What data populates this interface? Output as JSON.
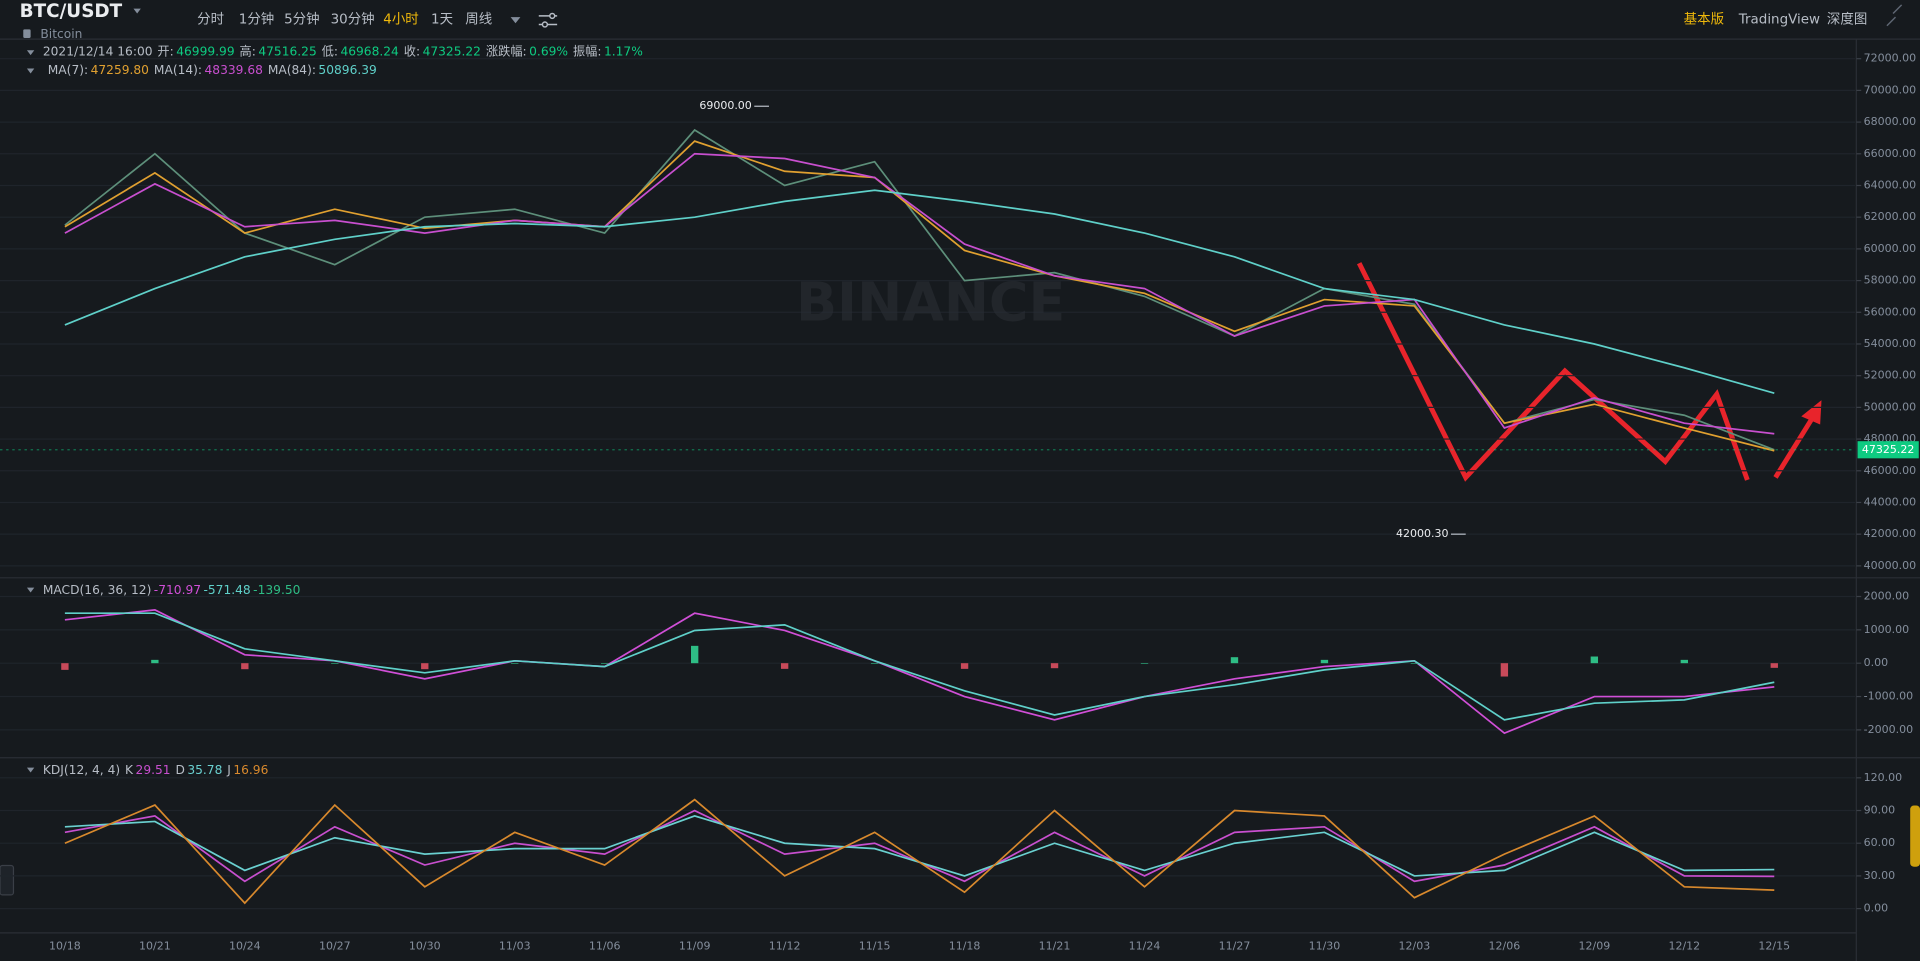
{
  "toolbar": {
    "symbol": "BTC/USDT",
    "name": "Bitcoin",
    "intervals": [
      "分时",
      "1分钟",
      "5分钟",
      "30分钟",
      "4小时",
      "1天",
      "周线"
    ],
    "active": 4,
    "views": [
      "基本版",
      "TradingView",
      "深度图"
    ]
  },
  "info": {
    "date": "2021/12/14 16:00",
    "fields": [
      {
        "label": "开:",
        "value": "46999.99"
      },
      {
        "label": "高:",
        "value": "47516.25"
      },
      {
        "label": "低:",
        "value": "46968.24"
      },
      {
        "label": "收:",
        "value": "47325.22"
      },
      {
        "label": "涨跌幅:",
        "value": "0.69%"
      },
      {
        "label": "振幅:",
        "value": "1.17%"
      }
    ]
  },
  "chart_data": [
    {
      "type": "line",
      "watermark": "BINANCE",
      "categories": [
        "10/18",
        "10/21",
        "10/24",
        "10/27",
        "10/30",
        "11/03",
        "11/06",
        "11/09",
        "11/12",
        "11/15",
        "11/18",
        "11/21",
        "11/24",
        "11/27",
        "11/30",
        "12/03",
        "12/06",
        "12/09",
        "12/12",
        "12/15"
      ],
      "series": [
        {
          "color": "#5d8f7a",
          "values": [
            61500,
            66000,
            61000,
            59000,
            62000,
            62500,
            61000,
            67500,
            64000,
            65500,
            58000,
            58500,
            57000,
            54500,
            57500,
            56500,
            49000,
            50500,
            49500,
            47325.22
          ]
        },
        {
          "name": "MA(7):",
          "last": "47259.80",
          "color": "#e0a030",
          "values": [
            61400,
            64800,
            61000,
            62500,
            61300,
            61800,
            61400,
            66800,
            64900,
            64500,
            59900,
            58300,
            57200,
            54800,
            56800,
            56400,
            49000,
            50200,
            48700,
            47259.8
          ]
        },
        {
          "name": "MA(14):",
          "last": "48339.68",
          "color": "#c84fcf",
          "values": [
            61000,
            64100,
            61400,
            61800,
            61000,
            61800,
            61400,
            66000,
            65700,
            64500,
            60300,
            58300,
            57500,
            54500,
            56400,
            56800,
            48700,
            50600,
            49000,
            48339.68
          ]
        },
        {
          "name": "MA(84):",
          "last": "50896.39",
          "color": "#5fd0c9",
          "values": [
            55200,
            57500,
            59500,
            60600,
            61400,
            61600,
            61400,
            62000,
            63000,
            63700,
            63000,
            62200,
            61000,
            59500,
            57500,
            56800,
            55200,
            54000,
            52500,
            50896.39
          ]
        }
      ],
      "annotations": [
        {
          "value": 69000,
          "label": "69000.00"
        },
        {
          "value": 42000.3,
          "label": "42000.30"
        }
      ],
      "ylim": [
        39400,
        73000
      ],
      "yticks": [
        {
          "value": 40000,
          "label": "40000.00"
        },
        {
          "value": 42000,
          "label": "42000.00"
        },
        {
          "value": 44000,
          "label": "44000.00"
        },
        {
          "value": 46000,
          "label": "46000.00"
        },
        {
          "value": 48000,
          "label": "48000.00"
        },
        {
          "value": 50000,
          "label": "50000.00"
        },
        {
          "value": 52000,
          "label": "52000.00"
        },
        {
          "value": 54000,
          "label": "54000.00"
        },
        {
          "value": 56000,
          "label": "56000.00"
        },
        {
          "value": 58000,
          "label": "58000.00"
        },
        {
          "value": 60000,
          "label": "60000.00"
        },
        {
          "value": 62000,
          "label": "62000.00"
        },
        {
          "value": 64000,
          "label": "64000.00"
        },
        {
          "value": 66000,
          "label": "66000.00"
        },
        {
          "value": 68000,
          "label": "68000.00"
        },
        {
          "value": 70000,
          "label": "70000.00"
        },
        {
          "value": 72000,
          "label": "72000.00"
        }
      ],
      "grid": true
    },
    {
      "type": "line",
      "title": "MACD(16, 36, 12)",
      "series": [
        {
          "last": "-710.97",
          "color": "#d04fd7",
          "values": [
            1300,
            1600,
            250,
            70,
            -470,
            70,
            -100,
            1500,
            980,
            70,
            -1000,
            -1700,
            -1000,
            -470,
            -100,
            70,
            -2100,
            -1000,
            -1000,
            -710.97
          ]
        },
        {
          "last": "-571.48",
          "color": "#5fd0c9",
          "values": [
            1500,
            1500,
            430,
            70,
            -290,
            70,
            -100,
            980,
            1150,
            70,
            -830,
            -1550,
            -1000,
            -650,
            -200,
            70,
            -1700,
            -1200,
            -1100,
            -571.48
          ]
        },
        {
          "last": "-139.50",
          "type": "bar",
          "color": "#2ebd85",
          "negative_color": "#c84a5a",
          "values": [
            -200,
            100,
            -180,
            0,
            -180,
            0,
            0,
            520,
            -170,
            0,
            -170,
            -150,
            0,
            180,
            100,
            0,
            -400,
            200,
            100,
            -139.5
          ]
        }
      ],
      "ylim": [
        -2800,
        2450
      ],
      "yticks": [
        {
          "value": 2000,
          "label": "2000.00"
        },
        {
          "value": 1000,
          "label": "1000.00"
        },
        {
          "value": 0,
          "label": "0.00"
        },
        {
          "value": -1000,
          "label": "-1000.00"
        },
        {
          "value": -2000,
          "label": "-2000.00"
        }
      ],
      "grid": true
    },
    {
      "type": "line",
      "title": "KDJ(12, 4, 4)",
      "series": [
        {
          "name": "K",
          "last": "29.51",
          "color": "#c84fcf",
          "values": [
            70,
            85,
            25,
            75,
            40,
            60,
            50,
            90,
            50,
            60,
            25,
            70,
            30,
            70,
            75,
            25,
            40,
            75,
            30,
            29.51
          ]
        },
        {
          "name": "D",
          "last": "35.78",
          "color": "#6ad0d0",
          "values": [
            75,
            80,
            35,
            65,
            50,
            55,
            55,
            85,
            60,
            55,
            30,
            60,
            35,
            60,
            70,
            30,
            35,
            70,
            35,
            35.78
          ]
        },
        {
          "name": "J",
          "last": "16.96",
          "color": "#d8892d",
          "values": [
            60,
            95,
            5,
            95,
            20,
            70,
            40,
            100,
            30,
            70,
            15,
            90,
            20,
            90,
            85,
            10,
            50,
            85,
            20,
            16.96
          ]
        }
      ],
      "ylim": [
        -20,
        135
      ],
      "yticks": [
        {
          "value": 120,
          "label": "120.00"
        },
        {
          "value": 90,
          "label": "90.00"
        },
        {
          "value": 60,
          "label": "60.00"
        },
        {
          "value": 30,
          "label": "30.00"
        },
        {
          "value": 0,
          "label": "0.00"
        }
      ],
      "grid": true
    }
  ]
}
